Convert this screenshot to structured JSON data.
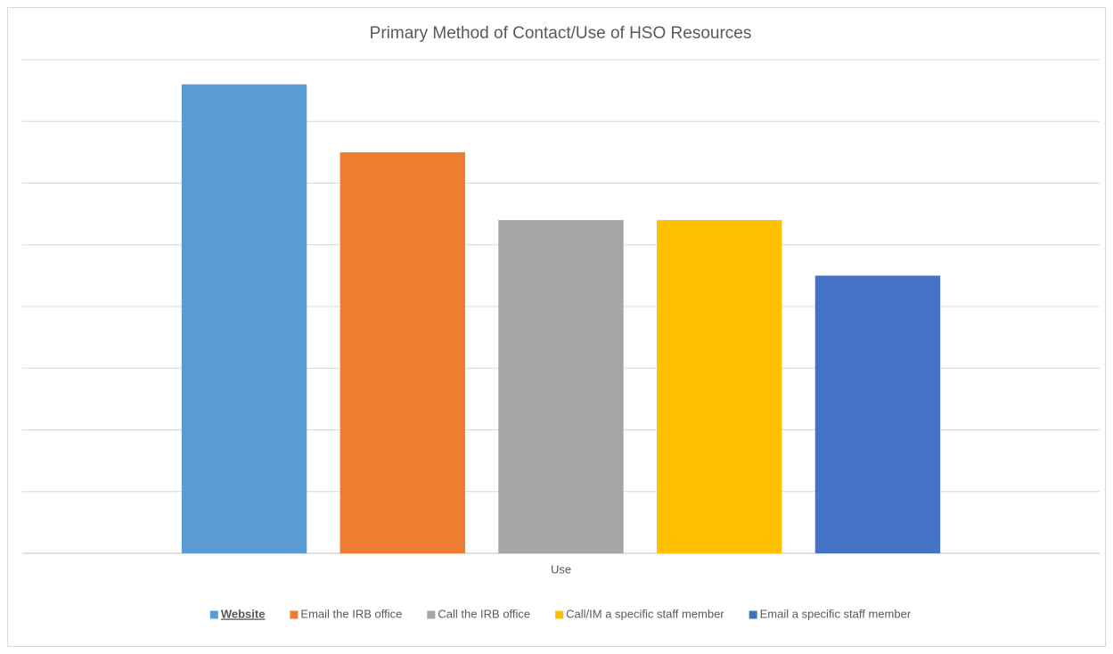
{
  "chart_data": {
    "type": "bar",
    "title": "Primary Method of Contact/Use of HSO Resources",
    "categories": [
      "Use"
    ],
    "series": [
      {
        "name": "Website",
        "color": "#5b9bd5",
        "values": [
          7.6
        ]
      },
      {
        "name": "Email the IRB office",
        "color": "#ed7d31",
        "values": [
          6.5
        ]
      },
      {
        "name": "Call the IRB office",
        "color": "#a5a5a5",
        "values": [
          5.4
        ]
      },
      {
        "name": "Call/IM a specific staff member",
        "color": "#ffc000",
        "values": [
          5.4
        ]
      },
      {
        "name": "Email a specific staff member",
        "color": "#4472c4",
        "values": [
          4.5
        ]
      }
    ],
    "ylim": [
      0,
      8
    ],
    "yticks": [
      0,
      1,
      2,
      3,
      4,
      5,
      6,
      7,
      8
    ],
    "grid": true,
    "legend": "bottom"
  }
}
